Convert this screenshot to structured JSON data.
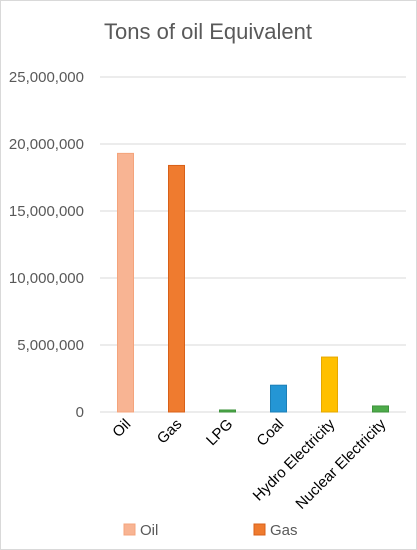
{
  "chart_data": {
    "type": "bar",
    "title": "Tons of oil Equivalent",
    "xlabel": "",
    "ylabel": "",
    "ylim": [
      0,
      25000000
    ],
    "yticks": [
      0,
      5000000,
      10000000,
      15000000,
      20000000,
      25000000
    ],
    "ytick_labels": [
      "0",
      "5,000,000",
      "10,000,000",
      "15,000,000",
      "20,000,000",
      "25,000,000"
    ],
    "categories": [
      "Oil",
      "Gas",
      "LPG",
      "Coal",
      "Hydro Electricity",
      "Nuclear Electricity"
    ],
    "values": [
      19300000,
      18400000,
      150000,
      2000000,
      4100000,
      450000
    ],
    "bar_colors": [
      "#f8b493",
      "#ef7b2f",
      "#4dab4a",
      "#2496d5",
      "#ffc000",
      "#4dab4a"
    ],
    "bar_edge_colors": [
      "#f4a47c",
      "#d86018",
      "#3e923c",
      "#1c7fb6",
      "#e6a800",
      "#3e923c"
    ],
    "grid": true,
    "legend": {
      "placement": "bottom",
      "entries": [
        {
          "label": "Oil",
          "color": "#f8b493",
          "edge": "#f4a47c"
        },
        {
          "label": "Gas",
          "color": "#ef7b2f",
          "edge": "#d86018"
        }
      ]
    }
  }
}
